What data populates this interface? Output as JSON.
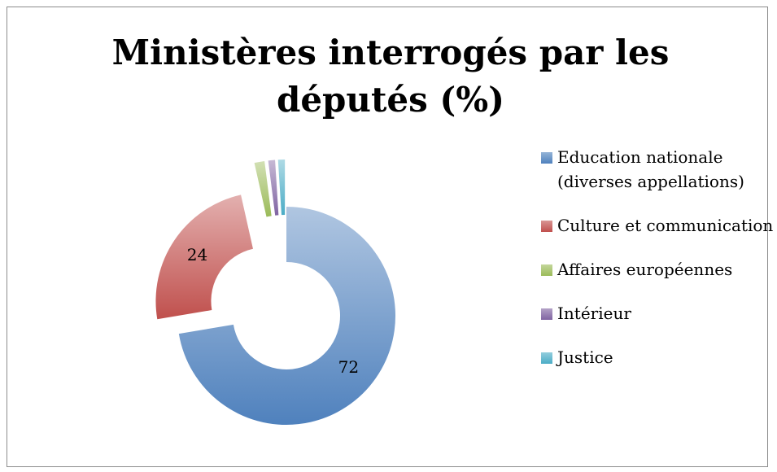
{
  "chart_data": {
    "type": "donut",
    "title": "Ministères interrogés par les députés (%)",
    "series": [
      {
        "name": "Education nationale (diverses appellations)",
        "color": "#4f81bd",
        "values": [
          72
        ]
      },
      {
        "name": "Culture et communication",
        "color": "#c0504d",
        "values": [
          24
        ]
      },
      {
        "name": "Affaires européennes",
        "color": "#9bbb59",
        "values": [
          1.5
        ]
      },
      {
        "name": "Intérieur",
        "color": "#8064a2",
        "values": [
          1
        ]
      },
      {
        "name": "Justice",
        "color": "#4bacc6",
        "values": [
          1
        ]
      }
    ],
    "data_labels": [
      true,
      true,
      false,
      false,
      false
    ],
    "legend": "right"
  }
}
